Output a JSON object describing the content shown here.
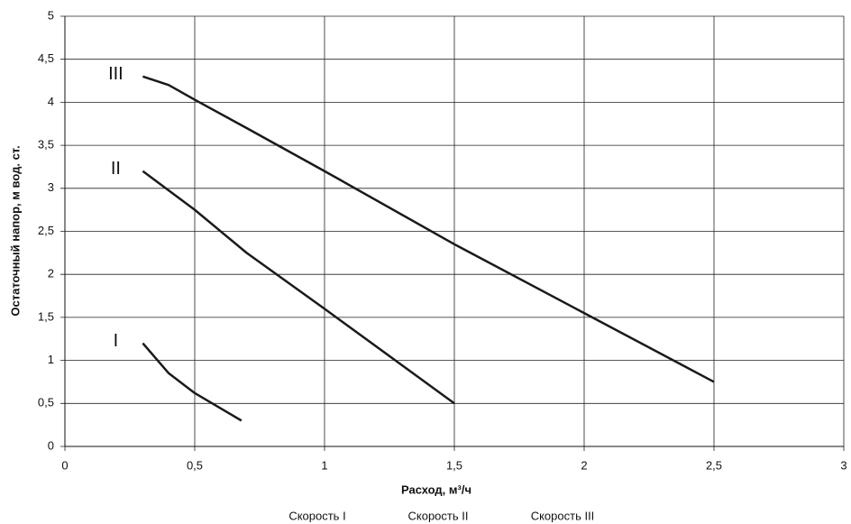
{
  "chart_data": {
    "type": "line",
    "xlabel": "Расход, м³/ч",
    "ylabel": "Остаточный напор, м вод. ст.",
    "xlim": [
      0,
      3
    ],
    "xticks": [
      0,
      {
        "value": 0.5,
        "label": "0,5"
      },
      1,
      {
        "value": 1.5,
        "label": "1,5"
      },
      2,
      {
        "value": 2.5,
        "label": "2,5"
      },
      3
    ],
    "ylim": [
      0,
      5
    ],
    "yticks": [
      0,
      {
        "value": 0.5,
        "label": "0,5"
      },
      1,
      {
        "value": 1.5,
        "label": "1,5"
      },
      2,
      {
        "value": 2.5,
        "label": "2,5"
      },
      3,
      {
        "value": 3.5,
        "label": "3,5"
      },
      4,
      {
        "value": 4.5,
        "label": "4,5"
      },
      5
    ],
    "grid": true,
    "legend": "bottom",
    "series": [
      {
        "name": "Скорость I",
        "label": "I",
        "color": "#1a1a1a",
        "x": [
          0.3,
          0.4,
          0.5,
          0.68
        ],
        "values": [
          1.2,
          0.85,
          0.62,
          0.3
        ]
      },
      {
        "name": "Скорость II",
        "label": "II",
        "color": "#1a1a1a",
        "x": [
          0.3,
          0.5,
          0.7,
          1,
          1.5
        ],
        "values": [
          3.2,
          2.75,
          2.25,
          1.6,
          0.5
        ]
      },
      {
        "name": "Скорость III",
        "label": "III",
        "color": "#1a1a1a",
        "x": [
          0.3,
          0.4,
          0.5,
          0.7,
          1,
          1.5,
          2,
          2.5
        ],
        "values": [
          4.3,
          4.2,
          4.03,
          3.7,
          3.2,
          2.35,
          1.55,
          0.75
        ]
      }
    ]
  }
}
